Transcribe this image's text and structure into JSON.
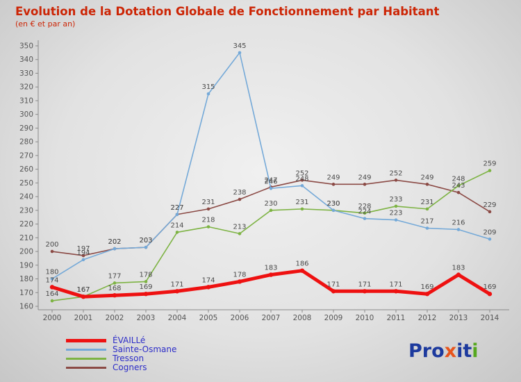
{
  "title": "Evolution de la Dotation Globale de Fonctionnement par Habitant",
  "subtitle": "(en € et par an)",
  "chart_data": {
    "type": "line",
    "x": [
      2000,
      2001,
      2002,
      2003,
      2004,
      2005,
      2006,
      2007,
      2008,
      2009,
      2010,
      2011,
      2012,
      2013,
      2014
    ],
    "ylim": [
      160,
      350
    ],
    "ytick_step": 10,
    "grid": false,
    "legend_position": "bottom-left",
    "series": [
      {
        "name": "ÉVAILLé",
        "color": "#ee1111",
        "line_width": 5,
        "values": [
          174,
          167,
          168,
          169,
          171,
          174,
          178,
          183,
          186,
          171,
          171,
          171,
          169,
          183,
          169
        ]
      },
      {
        "name": "Sainte-Osmane",
        "color": "#74a9d8",
        "line_width": 1.6,
        "values": [
          180,
          194,
          202,
          203,
          227,
          315,
          345,
          246,
          248,
          230,
          224,
          223,
          217,
          216,
          209
        ]
      },
      {
        "name": "Tresson",
        "color": "#7db343",
        "line_width": 1.6,
        "values": [
          164,
          167,
          177,
          178,
          214,
          218,
          213,
          230,
          231,
          230,
          228,
          233,
          231,
          248,
          259
        ]
      },
      {
        "name": "Cogners",
        "color": "#8b4a45",
        "line_width": 1.6,
        "values": [
          200,
          197,
          202,
          203,
          227,
          231,
          238,
          247,
          252,
          249,
          249,
          252,
          249,
          243,
          229
        ]
      }
    ]
  },
  "logo": {
    "letters": [
      {
        "ch": "P",
        "color": "#1d3a9e"
      },
      {
        "ch": "r",
        "color": "#1d3a9e"
      },
      {
        "ch": "o",
        "color": "#1d3a9e"
      },
      {
        "ch": "x",
        "color": "#e8541c"
      },
      {
        "ch": "i",
        "color": "#1d3a9e"
      },
      {
        "ch": "t",
        "color": "#1d3a9e"
      },
      {
        "ch": "i",
        "color": "#56a81f"
      }
    ]
  }
}
